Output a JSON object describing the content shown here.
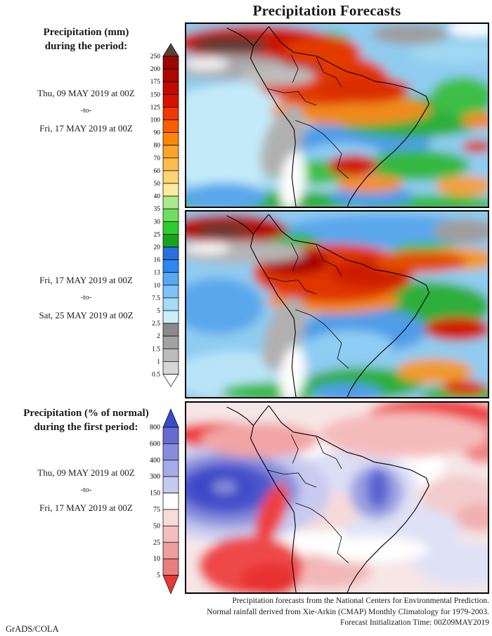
{
  "title": "Precipitation Forecasts",
  "sidebar": {
    "block1": {
      "title1": "Precipitation (mm)",
      "title2": "during the period:",
      "date_from": "Thu, 09 MAY 2019 at 00Z",
      "separator": "-to-",
      "date_to": "Fri, 17 MAY 2019 at 00Z"
    },
    "block2": {
      "date_from": "Fri, 17 MAY 2019 at 00Z",
      "separator": "-to-",
      "date_to": "Sat, 25 MAY 2019 at 00Z"
    },
    "block3": {
      "title1": "Precipitation (% of normal)",
      "title2": "during the first period:",
      "date_from": "Thu, 09 MAY 2019 at 00Z",
      "separator": "-to-",
      "date_to": "Fri, 17 MAY 2019 at 00Z"
    }
  },
  "colorbar_mm": {
    "unit": "mm",
    "labels": [
      "250",
      "200",
      "175",
      "150",
      "125",
      "100",
      "90",
      "80",
      "70",
      "60",
      "50",
      "40",
      "35",
      "30",
      "25",
      "20",
      "16",
      "13",
      "10",
      "7.5",
      "5",
      "2.5",
      "2",
      "1.5",
      "1",
      "0.5"
    ],
    "colors": [
      "#9c0600",
      "#ad0800",
      "#c00b00",
      "#d81100",
      "#ee3800",
      "#fa5c00",
      "#fd8609",
      "#fca32b",
      "#fcbc4e",
      "#fbd573",
      "#fceb9e",
      "#a9ea8f",
      "#6cdf60",
      "#2ecc30",
      "#17a41a",
      "#2b6edd",
      "#2f87ee",
      "#57a7f2",
      "#80c2f5",
      "#a6daf7",
      "#caeffb",
      "#8a8a8a",
      "#a3a3a3",
      "#bcbcbc",
      "#d6d6d6"
    ],
    "arrow_top": "#5e3f34",
    "arrow_bottom": "#ffffff"
  },
  "colorbar_pct": {
    "unit": "% of normal",
    "labels": [
      "800",
      "600",
      "400",
      "300",
      "150",
      "75",
      "50",
      "25",
      "10",
      "5"
    ],
    "colors": [
      "#666bd1",
      "#888ddb",
      "#a6abe6",
      "#c6c9f0",
      "#ffffff",
      "#f8dcdc",
      "#f3bebe",
      "#ee9e9e",
      "#e97e7e"
    ],
    "arrow_top": "#3a4dc8",
    "arrow_bottom": "#e63838"
  },
  "footer": {
    "line1": "Precipitation forecasts from the National Centers for Environmental Prediction.",
    "line2": "Normal rainfall derived from Xie-Arkin (CMAP) Monthly Climatology for 1979-2003.",
    "line3": "Forecast Initialization Time: 00Z09MAY2019",
    "credit": "GrADS/COLA"
  }
}
